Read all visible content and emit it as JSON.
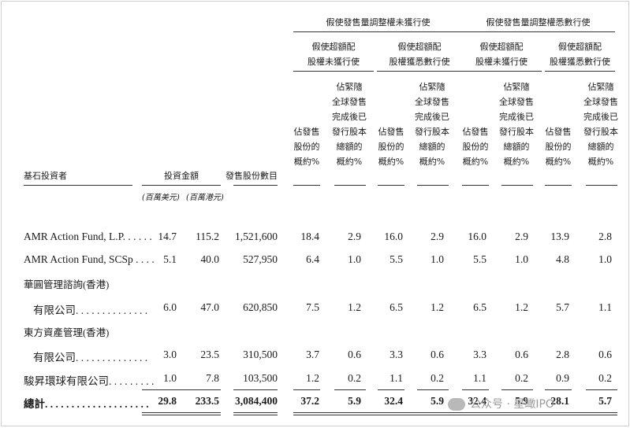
{
  "groups": {
    "over_allotment_not_exercised": "假使發售量調整權未獲行使",
    "over_allotment_exercised": "假使發售量調整權悉數行使"
  },
  "subgroups": {
    "a1": "假使超額配\n股權未獲行使",
    "a2": "假使超額配\n股權獲悉數行使",
    "b1": "假使超額配\n股權未獲行使",
    "b2": "假使超額配\n股權獲悉數行使"
  },
  "columns": {
    "investor": "基石投資者",
    "investment_amount": "投資金額",
    "shares": "發售股份數目",
    "pct_offer": "佔發售\n股份的\n概約%",
    "pct_total": "佔緊隨\n全球發售\n完成後已\n發行股本\n總額的\n概約%"
  },
  "units": {
    "usd": "(百萬美元)",
    "hkd": "(百萬港元)"
  },
  "rows": [
    {
      "name": "AMR Action Fund, L.P. . . . . .",
      "cells": [
        "14.7",
        "115.2",
        "1,521,600",
        "18.4",
        "2.9",
        "16.0",
        "2.9",
        "16.0",
        "2.9",
        "13.9",
        "2.8"
      ]
    },
    {
      "name": "AMR Action Fund, SCSp . . . .",
      "cells": [
        "5.1",
        "40.0",
        "527,950",
        "6.4",
        "1.0",
        "5.5",
        "1.0",
        "5.5",
        "1.0",
        "4.8",
        "1.0"
      ]
    },
    {
      "name_line1": "華圓管理諮詢(香港)",
      "name": "有限公司. . . . . . . . . . . . . .",
      "cells": [
        "6.0",
        "47.0",
        "620,850",
        "7.5",
        "1.2",
        "6.5",
        "1.2",
        "6.5",
        "1.2",
        "5.7",
        "1.1"
      ]
    },
    {
      "name_line1": "東方資產管理(香港)",
      "name": "有限公司. . . . . . . . . . . . . .",
      "cells": [
        "3.0",
        "23.5",
        "310,500",
        "3.7",
        "0.6",
        "3.3",
        "0.6",
        "3.3",
        "0.6",
        "2.8",
        "0.6"
      ]
    },
    {
      "name": "駿昇環球有限公司. . . . . . . . .",
      "cells": [
        "1.0",
        "7.8",
        "103,500",
        "1.2",
        "0.2",
        "1.1",
        "0.2",
        "1.1",
        "0.2",
        "0.9",
        "0.2"
      ]
    }
  ],
  "total": {
    "name": "總計. . . . . . . . . . . . . . . . . . . .",
    "cells": [
      "29.8",
      "233.5",
      "3,084,400",
      "37.2",
      "5.9",
      "32.4",
      "5.9",
      "32.4",
      "5.9",
      "28.1",
      "5.7"
    ]
  },
  "watermark": "公众号 · 星瞰IPO"
}
